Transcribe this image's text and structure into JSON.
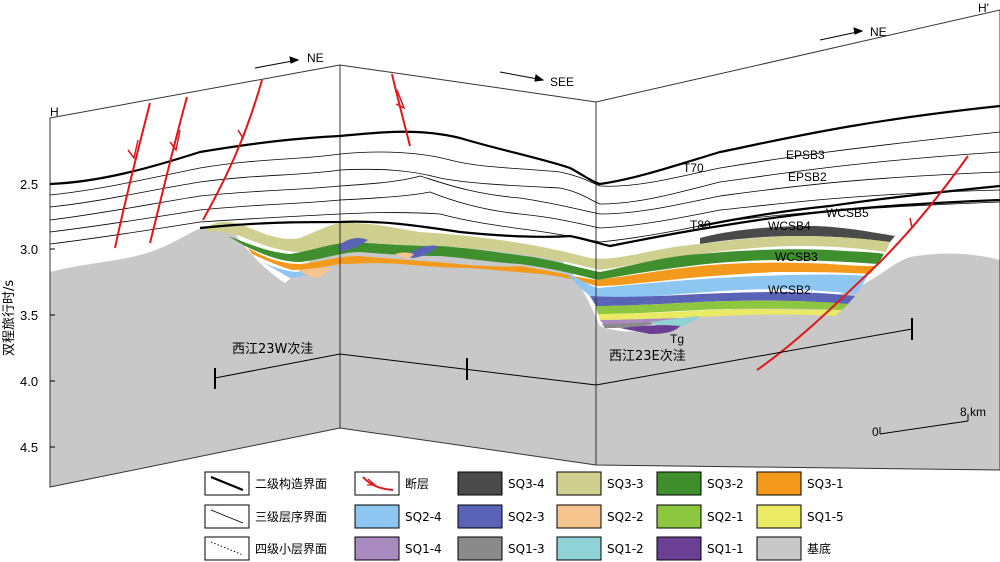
{
  "panel_labels": {
    "left": "H",
    "right": "H'"
  },
  "directions": [
    "NE",
    "SEE",
    "NE"
  ],
  "y_axis": {
    "title": "双程旅行时/s",
    "ticks": [
      "2.5",
      "3.0",
      "3.5",
      "4.0",
      "4.5"
    ]
  },
  "horizons": [
    "T70",
    "T80",
    "Tg",
    "EPSB3",
    "EPSB2",
    "WCSB5",
    "WCSB4",
    "WCSB3",
    "WCSB2"
  ],
  "sags": {
    "west": "西江23W次洼",
    "east": "西江23E次洼"
  },
  "scale": {
    "zero": "0",
    "distance": "8 km"
  },
  "legend": [
    {
      "key": "l2",
      "type": "line2",
      "label": "二级构造界面"
    },
    {
      "key": "fault",
      "type": "fault",
      "label": "断层"
    },
    {
      "key": "sq34",
      "type": "fill",
      "color": "#4a4a4a",
      "label": "SQ3-4"
    },
    {
      "key": "sq33",
      "type": "fill",
      "color": "#cfd08f",
      "label": "SQ3-3"
    },
    {
      "key": "sq32",
      "type": "fill",
      "color": "#3f8f2e",
      "label": "SQ3-2"
    },
    {
      "key": "sq31",
      "type": "fill",
      "color": "#f39a1d",
      "label": "SQ3-1"
    },
    {
      "key": "l3",
      "type": "line3",
      "label": "三级层序界面"
    },
    {
      "key": "sq24",
      "type": "fill",
      "color": "#8ec6f2",
      "label": "SQ2-4"
    },
    {
      "key": "sq23",
      "type": "fill",
      "color": "#5a63b5",
      "label": "SQ2-3"
    },
    {
      "key": "sq22",
      "type": "fill",
      "color": "#f6c48f",
      "label": "SQ2-2"
    },
    {
      "key": "sq21",
      "type": "fill",
      "color": "#8dc63f",
      "label": "SQ2-1"
    },
    {
      "key": "sq15",
      "type": "fill",
      "color": "#eaea64",
      "label": "SQ1-5"
    },
    {
      "key": "l4",
      "type": "line4",
      "label": "四级小层界面"
    },
    {
      "key": "sq14",
      "type": "fill",
      "color": "#a98bc0",
      "label": "SQ1-4"
    },
    {
      "key": "sq13",
      "type": "fill",
      "color": "#8a8a8a",
      "label": "SQ1-3"
    },
    {
      "key": "sq12",
      "type": "fill",
      "color": "#8fd3d6",
      "label": "SQ1-2"
    },
    {
      "key": "sq11",
      "type": "fill",
      "color": "#6b3f94",
      "label": "SQ1-1"
    },
    {
      "key": "base",
      "type": "fill",
      "color": "#c8c8c9",
      "label": "基底"
    }
  ]
}
